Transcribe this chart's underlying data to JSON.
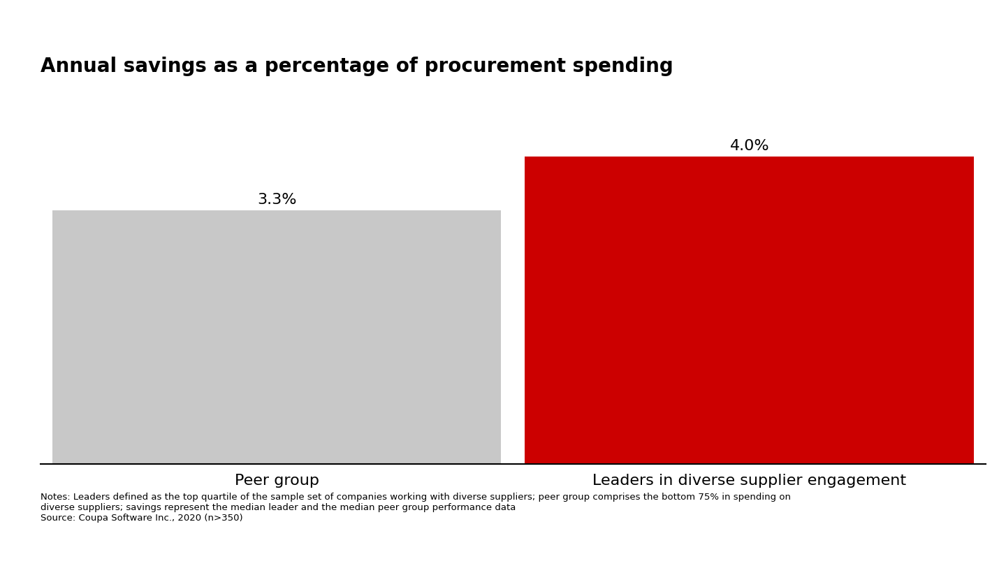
{
  "title": "Annual savings as a percentage of procurement spending",
  "categories": [
    "Peer group",
    "Leaders in diverse supplier engagement"
  ],
  "values": [
    3.3,
    4.0
  ],
  "labels": [
    "3.3%",
    "4.0%"
  ],
  "bar_colors": [
    "#c8c8c8",
    "#cc0000"
  ],
  "background_color": "#ffffff",
  "title_fontsize": 20,
  "label_fontsize": 16,
  "tick_fontsize": 16,
  "note_line1": "Notes: Leaders defined as the top quartile of the sample set of companies working with diverse suppliers; peer group comprises the bottom 75% in spending on",
  "note_line2": "diverse suppliers; savings represent the median leader and the median peer group performance data",
  "note_line3": "Source: Coupa Software Inc., 2020 (n>350)",
  "ylim": [
    0,
    5.0
  ],
  "bar_centers": [
    0.25,
    0.75
  ],
  "bar_width": 0.475,
  "xlim": [
    0,
    1.0
  ]
}
